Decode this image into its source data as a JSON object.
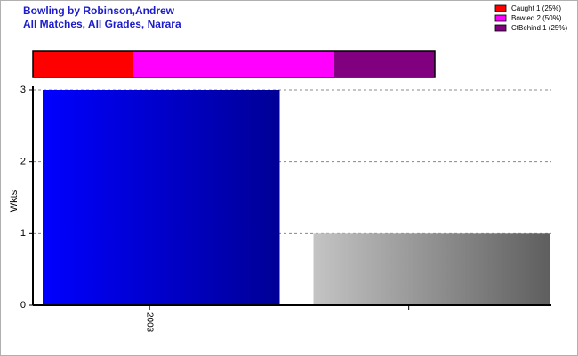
{
  "chart_data": [
    {
      "type": "proportion_strip",
      "series": [
        {
          "name": "Caught 1 (25%)",
          "color": "#ff0000",
          "values": [
            1
          ]
        },
        {
          "name": "Bowled 2 (50%)",
          "color": "#ff00ff",
          "values": [
            2
          ]
        },
        {
          "name": "CtBehind 1 (25%)",
          "color": "#800080",
          "values": [
            1
          ]
        }
      ],
      "legend": "top-right"
    },
    {
      "type": "bar",
      "title": "Bowling by Robinson,Andrew",
      "subtitle": "All Matches, All Grades, Narara",
      "ylabel": "Wkts",
      "categories": [
        "2003",
        null
      ],
      "values": [
        3,
        1
      ],
      "colors": [
        [
          "#0000ff",
          "#000096"
        ],
        [
          "#c4c4c4",
          "#5e5e5e"
        ]
      ],
      "ylim": [
        0,
        3
      ],
      "yticks": [
        0,
        1,
        2,
        3
      ],
      "grid": true
    }
  ]
}
